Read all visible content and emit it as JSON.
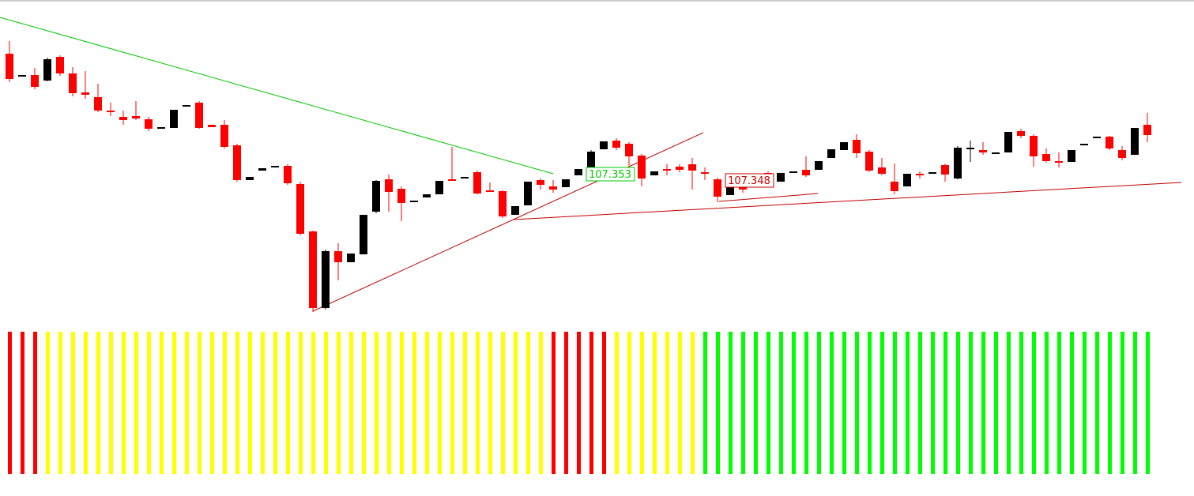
{
  "chart_data": [
    {
      "type": "candlestick",
      "up_color": "#000000",
      "down_color": "#ff0000",
      "ylim": [
        107.0,
        107.8
      ],
      "open": [
        107.668,
        107.61,
        107.614,
        107.6,
        107.66,
        107.618,
        107.57,
        107.558,
        107.524,
        107.508,
        107.51,
        107.502,
        107.478,
        107.48,
        107.534,
        107.544,
        107.488,
        107.488,
        107.436,
        107.348,
        107.372,
        107.38,
        107.384,
        107.338,
        107.218,
        107.024,
        107.168,
        107.14,
        107.16,
        107.268,
        107.35,
        107.326,
        107.292,
        107.304,
        107.312,
        107.35,
        107.352,
        107.368,
        107.322,
        107.32,
        107.26,
        107.284,
        107.348,
        107.332,
        107.33,
        107.36,
        107.378,
        107.426,
        107.448,
        107.44,
        107.41,
        107.36,
        107.376,
        107.382,
        107.388,
        107.368,
        107.35,
        107.31,
        107.346,
        107.334,
        107.366,
        107.344,
        107.368,
        107.374,
        107.374,
        107.404,
        107.424,
        107.45,
        107.42,
        107.38,
        107.344,
        107.332,
        107.364,
        107.364,
        107.386,
        107.352,
        107.426,
        107.424,
        107.414,
        107.418,
        107.472,
        107.46,
        107.414,
        107.396,
        107.394,
        107.436,
        107.454,
        107.458,
        107.424,
        107.412,
        107.488
      ],
      "high": [
        107.7,
        107.614,
        107.632,
        107.658,
        107.664,
        107.634,
        107.624,
        107.592,
        107.544,
        107.524,
        107.548,
        107.508,
        107.482,
        107.526,
        107.538,
        107.548,
        107.488,
        107.5,
        107.44,
        107.356,
        107.378,
        107.384,
        107.388,
        107.344,
        107.22,
        107.172,
        107.188,
        107.162,
        107.26,
        107.348,
        107.362,
        107.332,
        107.296,
        107.312,
        107.346,
        107.432,
        107.356,
        107.372,
        107.342,
        107.322,
        107.282,
        107.344,
        107.352,
        107.348,
        107.35,
        107.376,
        107.424,
        107.446,
        107.454,
        107.444,
        107.414,
        107.37,
        107.388,
        107.388,
        107.404,
        107.38,
        107.354,
        107.33,
        107.352,
        107.356,
        107.37,
        107.366,
        107.37,
        107.408,
        107.396,
        107.426,
        107.444,
        107.464,
        107.424,
        107.404,
        107.39,
        107.364,
        107.37,
        107.368,
        107.39,
        107.434,
        107.448,
        107.444,
        107.418,
        107.47,
        107.478,
        107.464,
        107.428,
        107.418,
        107.424,
        107.44,
        107.458,
        107.46,
        107.434,
        107.48,
        107.518
      ],
      "low": [
        107.596,
        107.61,
        107.578,
        107.598,
        107.612,
        107.56,
        107.554,
        107.52,
        107.51,
        107.488,
        107.5,
        107.472,
        107.478,
        107.48,
        107.534,
        107.478,
        107.482,
        107.428,
        107.344,
        107.348,
        107.372,
        107.38,
        107.336,
        107.208,
        107.014,
        107.02,
        107.094,
        107.14,
        107.16,
        107.264,
        107.268,
        107.244,
        107.292,
        107.304,
        107.312,
        107.346,
        107.352,
        107.312,
        107.318,
        107.252,
        107.26,
        107.284,
        107.324,
        107.316,
        107.33,
        107.36,
        107.374,
        107.426,
        107.424,
        107.384,
        107.332,
        107.36,
        107.36,
        107.368,
        107.324,
        107.348,
        107.292,
        107.31,
        107.316,
        107.334,
        107.334,
        107.344,
        107.368,
        107.356,
        107.374,
        107.404,
        107.424,
        107.404,
        107.368,
        107.36,
        107.312,
        107.332,
        107.352,
        107.364,
        107.344,
        107.35,
        107.394,
        107.412,
        107.414,
        107.418,
        107.454,
        107.382,
        107.392,
        107.38,
        107.394,
        107.436,
        107.454,
        107.424,
        107.398,
        107.412,
        107.444
      ],
      "close": [
        107.604,
        107.614,
        107.584,
        107.654,
        107.618,
        107.568,
        107.564,
        107.524,
        107.52,
        107.5,
        107.504,
        107.478,
        107.482,
        107.526,
        107.538,
        107.48,
        107.482,
        107.432,
        107.348,
        107.356,
        107.378,
        107.384,
        107.34,
        107.212,
        107.024,
        107.168,
        107.14,
        107.162,
        107.26,
        107.346,
        107.318,
        107.29,
        107.296,
        107.312,
        107.346,
        107.346,
        107.356,
        107.314,
        107.32,
        107.256,
        107.282,
        107.344,
        107.336,
        107.324,
        107.35,
        107.376,
        107.42,
        107.446,
        107.43,
        107.408,
        107.352,
        107.37,
        107.372,
        107.374,
        107.372,
        107.364,
        107.306,
        107.33,
        107.324,
        107.356,
        107.344,
        107.366,
        107.37,
        107.36,
        107.396,
        107.426,
        107.444,
        107.416,
        107.372,
        107.364,
        107.32,
        107.364,
        107.36,
        107.368,
        107.362,
        107.43,
        107.43,
        107.418,
        107.418,
        107.47,
        107.46,
        107.408,
        107.396,
        107.392,
        107.424,
        107.44,
        107.458,
        107.428,
        107.404,
        107.48,
        107.462
      ],
      "trendlines": [
        {
          "color": "#00c800",
          "points": [
            [
              -0.75,
              107.76
            ],
            [
              43,
              107.364
            ]
          ]
        },
        {
          "color": "#c00000",
          "points": [
            [
              24,
              107.016
            ],
            [
              54.875,
              107.468
            ]
          ]
        },
        {
          "color": "#c00000",
          "points": [
            [
              39.875,
              107.248
            ],
            [
              92.69,
              107.342
            ]
          ]
        },
        {
          "color": "#c00000",
          "points": [
            [
              56.125,
              107.294
            ],
            [
              63.94,
              107.314
            ]
          ]
        }
      ],
      "annotations": [
        {
          "text": "107.353",
          "color": "#00cc00"
        },
        {
          "text": "107.348",
          "color": "#cc0000"
        }
      ]
    },
    {
      "type": "bar",
      "ylim": [
        0,
        1
      ],
      "values": [
        1,
        1,
        1,
        1,
        1,
        1,
        1,
        1,
        1,
        1,
        1,
        1,
        1,
        1,
        1,
        1,
        1,
        1,
        1,
        1,
        1,
        1,
        1,
        1,
        1,
        1,
        1,
        1,
        1,
        1,
        1,
        1,
        1,
        1,
        1,
        1,
        1,
        1,
        1,
        1,
        1,
        1,
        1,
        1,
        1,
        1,
        1,
        1,
        1,
        1,
        1,
        1,
        1,
        1,
        1,
        1,
        1,
        1,
        1,
        1,
        1,
        1,
        1,
        1,
        1,
        1,
        1,
        1,
        1,
        1,
        1,
        1,
        1,
        1,
        1,
        1,
        1,
        1,
        1,
        1,
        1,
        1,
        1,
        1,
        1,
        1,
        1,
        1,
        1,
        1,
        1
      ],
      "colors": [
        "#ff0000",
        "#ff0000",
        "#ff0000",
        "#ffff00",
        "#ffff00",
        "#ffff00",
        "#ffff00",
        "#ffff00",
        "#ffff00",
        "#ffff00",
        "#ffff00",
        "#ffff00",
        "#ffff00",
        "#ffff00",
        "#ffff00",
        "#ffff00",
        "#ffff00",
        "#ffff00",
        "#ffff00",
        "#ffff00",
        "#ffff00",
        "#ffff00",
        "#ffff00",
        "#ffff00",
        "#ffff00",
        "#ffff00",
        "#ffff00",
        "#ffff00",
        "#ffff00",
        "#ffff00",
        "#ffff00",
        "#ffff00",
        "#ffff00",
        "#ffff00",
        "#ffff00",
        "#ffff00",
        "#ffff00",
        "#ffff00",
        "#ffff00",
        "#ffff00",
        "#ffff00",
        "#ffff00",
        "#ffff00",
        "#ff0000",
        "#ff0000",
        "#ff0000",
        "#ff0000",
        "#ff0000",
        "#ffff00",
        "#ffff00",
        "#ffff00",
        "#ffff00",
        "#ffff00",
        "#ffff00",
        "#ffff00",
        "#00ff00",
        "#00ff00",
        "#00ff00",
        "#00ff00",
        "#00ff00",
        "#00ff00",
        "#00ff00",
        "#00ff00",
        "#00ff00",
        "#00ff00",
        "#00ff00",
        "#00ff00",
        "#00ff00",
        "#00ff00",
        "#00ff00",
        "#00ff00",
        "#00ff00",
        "#00ff00",
        "#00ff00",
        "#00ff00",
        "#00ff00",
        "#00ff00",
        "#00ff00",
        "#00ff00",
        "#00ff00",
        "#00ff00",
        "#00ff00",
        "#00ff00",
        "#00ff00",
        "#00ff00",
        "#00ff00",
        "#00ff00",
        "#00ff00",
        "#00ff00",
        "#00ff00",
        "#00ff00"
      ]
    }
  ]
}
